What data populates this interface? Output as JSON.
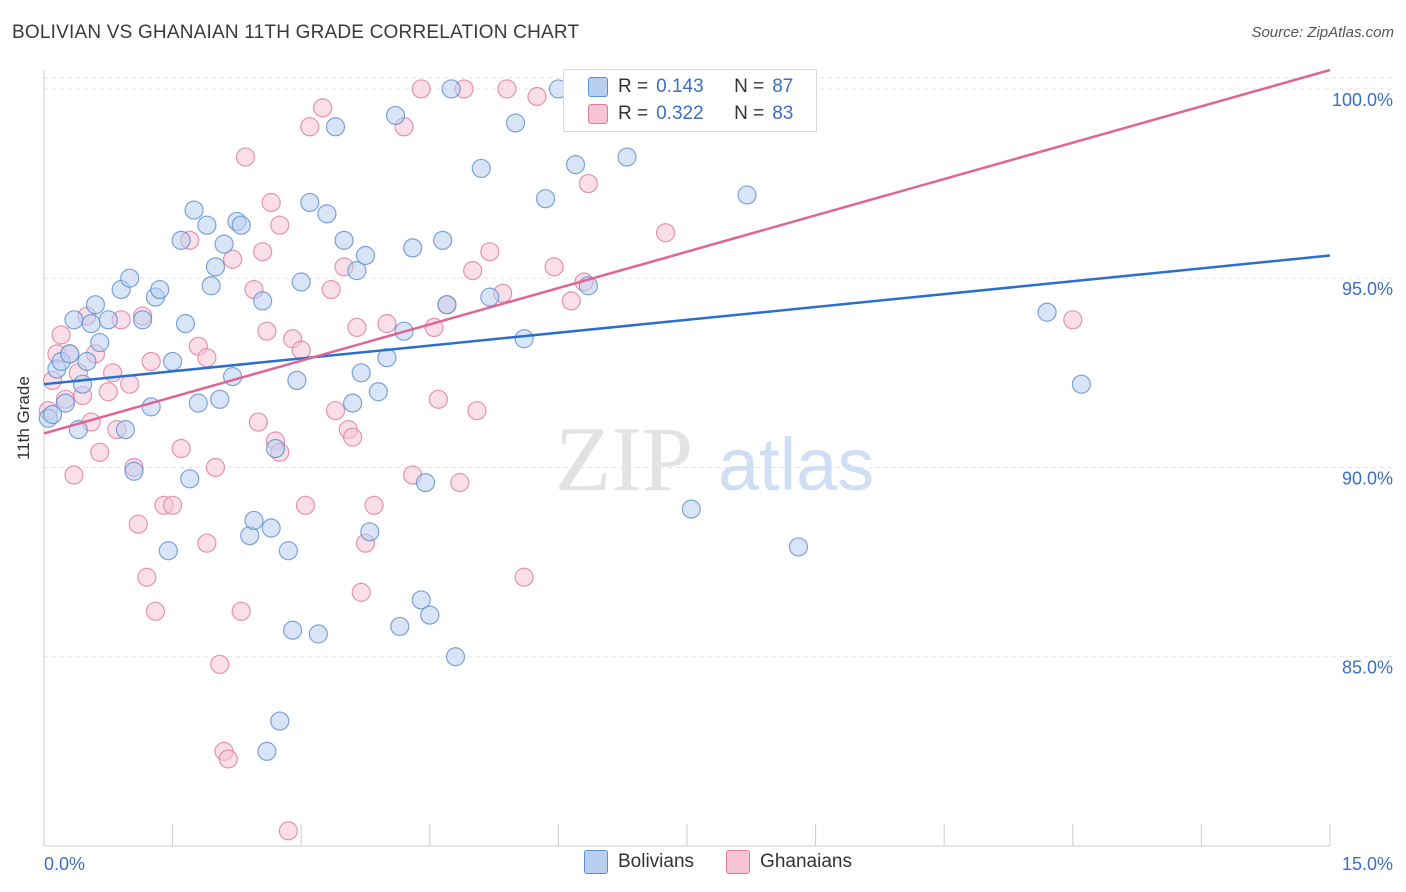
{
  "title": "BOLIVIAN VS GHANAIAN 11TH GRADE CORRELATION CHART",
  "source": "Source: ZipAtlas.com",
  "watermark": {
    "zip": "ZIP",
    "atlas": "atlas"
  },
  "colors": {
    "bolivians": "#5b8fd4",
    "bolivians_fill": "#b9cff0",
    "ghanaians": "#e07aa0",
    "ghanaians_fill": "#f6c4d5",
    "blue_line": "#2b6fcd",
    "pink_line": "#e06494",
    "tick_text": "#3b6fc4"
  },
  "stats": {
    "rows": [
      {
        "r_label": "R =",
        "r": "0.143",
        "n_label": "N =",
        "n": "87"
      },
      {
        "r_label": "R =",
        "r": "0.322",
        "n_label": "N =",
        "n": "83"
      }
    ]
  },
  "legend": {
    "bolivians": "Bolivians",
    "ghanaians": "Ghanaians"
  },
  "chart_data": {
    "type": "scatter",
    "title": "BOLIVIAN VS GHANAIAN 11TH GRADE CORRELATION CHART",
    "xlabel": "",
    "ylabel": "11th Grade",
    "xlim": [
      0,
      15
    ],
    "ylim": [
      80,
      100.5
    ],
    "x_tick_labels": [
      "0.0%",
      "15.0%"
    ],
    "y_ticks": [
      85,
      90,
      95,
      100
    ],
    "y_tick_labels": [
      "85.0%",
      "90.0%",
      "95.0%",
      "100.0%"
    ],
    "grid": true,
    "series": [
      {
        "name": "Bolivians",
        "trend": {
          "x": [
            0,
            15
          ],
          "y": [
            92.2,
            95.6
          ]
        },
        "points": [
          [
            0.05,
            91.3
          ],
          [
            0.15,
            92.6
          ],
          [
            0.2,
            92.8
          ],
          [
            0.25,
            91.7
          ],
          [
            0.3,
            93.0
          ],
          [
            0.35,
            93.9
          ],
          [
            0.4,
            91.0
          ],
          [
            0.45,
            92.2
          ],
          [
            0.55,
            93.8
          ],
          [
            0.6,
            94.3
          ],
          [
            0.65,
            93.3
          ],
          [
            0.75,
            93.9
          ],
          [
            0.9,
            94.7
          ],
          [
            0.95,
            91.0
          ],
          [
            1.0,
            95.0
          ],
          [
            1.05,
            89.9
          ],
          [
            1.15,
            93.9
          ],
          [
            1.25,
            91.6
          ],
          [
            1.3,
            94.5
          ],
          [
            1.35,
            94.7
          ],
          [
            1.45,
            87.8
          ],
          [
            1.5,
            92.8
          ],
          [
            1.6,
            96.0
          ],
          [
            1.65,
            93.8
          ],
          [
            1.7,
            89.7
          ],
          [
            1.75,
            96.8
          ],
          [
            1.8,
            91.7
          ],
          [
            1.9,
            96.4
          ],
          [
            1.95,
            94.8
          ],
          [
            2.0,
            95.3
          ],
          [
            2.05,
            91.8
          ],
          [
            2.1,
            95.9
          ],
          [
            2.2,
            92.4
          ],
          [
            2.25,
            96.5
          ],
          [
            2.3,
            96.4
          ],
          [
            2.4,
            88.2
          ],
          [
            2.45,
            88.6
          ],
          [
            2.55,
            94.4
          ],
          [
            2.6,
            82.5
          ],
          [
            2.65,
            88.4
          ],
          [
            2.7,
            90.5
          ],
          [
            2.75,
            83.3
          ],
          [
            2.85,
            87.8
          ],
          [
            2.9,
            85.7
          ],
          [
            2.95,
            92.3
          ],
          [
            3.0,
            94.9
          ],
          [
            3.1,
            97.0
          ],
          [
            3.2,
            85.6
          ],
          [
            3.3,
            96.7
          ],
          [
            3.4,
            99.0
          ],
          [
            3.5,
            96.0
          ],
          [
            3.6,
            91.7
          ],
          [
            3.65,
            95.2
          ],
          [
            3.7,
            92.5
          ],
          [
            3.75,
            95.6
          ],
          [
            3.8,
            88.3
          ],
          [
            3.9,
            92.0
          ],
          [
            4.0,
            92.9
          ],
          [
            4.1,
            99.3
          ],
          [
            4.15,
            85.8
          ],
          [
            4.2,
            93.6
          ],
          [
            4.3,
            95.8
          ],
          [
            4.4,
            86.5
          ],
          [
            4.45,
            89.6
          ],
          [
            4.5,
            86.1
          ],
          [
            4.65,
            96.0
          ],
          [
            4.7,
            94.3
          ],
          [
            4.75,
            100.0
          ],
          [
            4.8,
            85.0
          ],
          [
            5.1,
            97.9
          ],
          [
            5.2,
            94.5
          ],
          [
            5.5,
            99.1
          ],
          [
            5.6,
            93.4
          ],
          [
            5.85,
            97.1
          ],
          [
            6.0,
            100.0
          ],
          [
            6.2,
            98.0
          ],
          [
            6.35,
            94.8
          ],
          [
            6.45,
            100.0
          ],
          [
            6.8,
            98.2
          ],
          [
            7.15,
            100.0
          ],
          [
            7.55,
            88.9
          ],
          [
            8.2,
            97.2
          ],
          [
            8.8,
            87.9
          ],
          [
            11.7,
            94.1
          ],
          [
            12.1,
            92.2
          ],
          [
            0.1,
            91.4
          ],
          [
            0.5,
            92.8
          ]
        ]
      },
      {
        "name": "Ghanaians",
        "trend": {
          "x": [
            0,
            15
          ],
          "y": [
            90.9,
            100.5
          ]
        },
        "points": [
          [
            0.05,
            91.5
          ],
          [
            0.1,
            92.3
          ],
          [
            0.15,
            93.0
          ],
          [
            0.2,
            93.5
          ],
          [
            0.3,
            93.0
          ],
          [
            0.35,
            89.8
          ],
          [
            0.4,
            92.5
          ],
          [
            0.45,
            91.9
          ],
          [
            0.5,
            94.0
          ],
          [
            0.6,
            93.0
          ],
          [
            0.65,
            90.4
          ],
          [
            0.75,
            92.0
          ],
          [
            0.8,
            92.5
          ],
          [
            0.85,
            91.0
          ],
          [
            0.9,
            93.9
          ],
          [
            1.0,
            92.2
          ],
          [
            1.05,
            90.0
          ],
          [
            1.1,
            88.5
          ],
          [
            1.15,
            94.0
          ],
          [
            1.2,
            87.1
          ],
          [
            1.3,
            86.2
          ],
          [
            1.4,
            89.0
          ],
          [
            1.5,
            89.0
          ],
          [
            1.6,
            90.5
          ],
          [
            1.7,
            96.0
          ],
          [
            1.8,
            93.2
          ],
          [
            1.9,
            88.0
          ],
          [
            2.0,
            90.0
          ],
          [
            2.05,
            84.8
          ],
          [
            2.1,
            82.5
          ],
          [
            2.15,
            82.3
          ],
          [
            2.2,
            95.5
          ],
          [
            2.3,
            86.2
          ],
          [
            2.35,
            98.2
          ],
          [
            2.45,
            94.7
          ],
          [
            2.5,
            91.2
          ],
          [
            2.55,
            95.7
          ],
          [
            2.6,
            93.6
          ],
          [
            2.65,
            97.0
          ],
          [
            2.7,
            90.7
          ],
          [
            2.75,
            96.4
          ],
          [
            2.85,
            80.4
          ],
          [
            2.9,
            93.4
          ],
          [
            3.0,
            93.1
          ],
          [
            3.05,
            89.0
          ],
          [
            3.1,
            99.0
          ],
          [
            3.25,
            99.5
          ],
          [
            3.35,
            94.7
          ],
          [
            3.4,
            91.5
          ],
          [
            3.5,
            95.3
          ],
          [
            3.55,
            91.0
          ],
          [
            3.6,
            90.8
          ],
          [
            3.7,
            86.7
          ],
          [
            3.75,
            88.0
          ],
          [
            3.85,
            89.0
          ],
          [
            4.0,
            93.8
          ],
          [
            4.2,
            99.0
          ],
          [
            4.3,
            89.8
          ],
          [
            4.4,
            100.0
          ],
          [
            4.55,
            93.7
          ],
          [
            4.6,
            91.8
          ],
          [
            4.7,
            94.3
          ],
          [
            4.85,
            89.6
          ],
          [
            4.9,
            100.0
          ],
          [
            5.0,
            95.2
          ],
          [
            5.05,
            91.5
          ],
          [
            5.2,
            95.7
          ],
          [
            5.35,
            94.6
          ],
          [
            5.4,
            100.0
          ],
          [
            5.6,
            87.1
          ],
          [
            5.75,
            99.8
          ],
          [
            5.95,
            95.3
          ],
          [
            6.15,
            94.4
          ],
          [
            6.3,
            94.9
          ],
          [
            6.35,
            97.5
          ],
          [
            7.25,
            96.2
          ],
          [
            12.0,
            93.9
          ],
          [
            0.25,
            91.8
          ],
          [
            0.55,
            91.2
          ],
          [
            1.25,
            92.8
          ],
          [
            1.9,
            92.9
          ],
          [
            2.75,
            90.4
          ],
          [
            3.65,
            93.7
          ]
        ]
      }
    ]
  }
}
